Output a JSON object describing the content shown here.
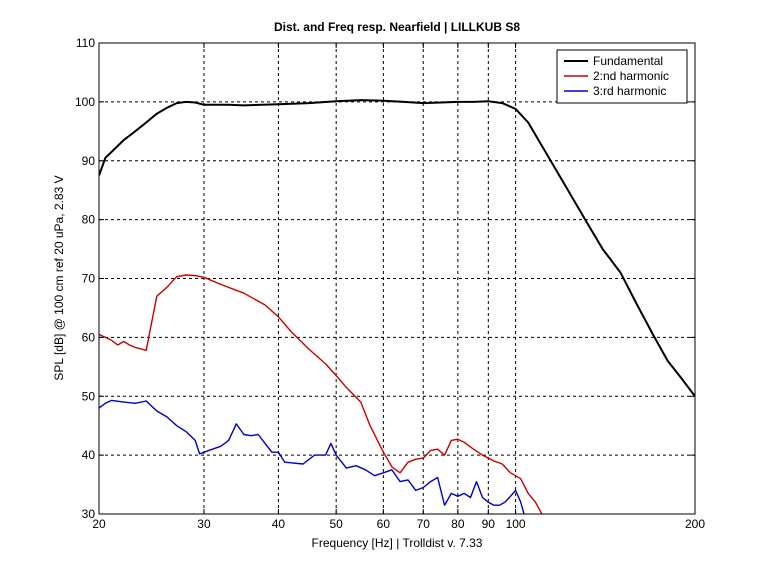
{
  "chart_data": {
    "type": "line",
    "title": "Dist. and Freq resp. Nearfield | LILLKUB S8",
    "xlabel": "Frequency [Hz] | Trolldist v. 7.33",
    "ylabel": "SPL [dB] @ 100 cm ref 20 uPa, 2.83 V",
    "xscale": "log",
    "xlim": [
      20,
      200
    ],
    "ylim": [
      30,
      110
    ],
    "xticks": [
      20,
      30,
      40,
      50,
      60,
      70,
      80,
      90,
      100,
      200
    ],
    "yticks": [
      30,
      40,
      50,
      60,
      70,
      80,
      90,
      100,
      110
    ],
    "grid": true,
    "legend_position": "top-right",
    "series": [
      {
        "name": "Fundamental",
        "color": "#000000",
        "points": [
          [
            20,
            87.5
          ],
          [
            20.5,
            90.5
          ],
          [
            21,
            91.5
          ],
          [
            22,
            93.5
          ],
          [
            23,
            95
          ],
          [
            24,
            96.5
          ],
          [
            25,
            98
          ],
          [
            26,
            99
          ],
          [
            27,
            99.8
          ],
          [
            28,
            100
          ],
          [
            29,
            99.9
          ],
          [
            30,
            99.5
          ],
          [
            33,
            99.5
          ],
          [
            35,
            99.4
          ],
          [
            40,
            99.6
          ],
          [
            45,
            99.8
          ],
          [
            50,
            100.1
          ],
          [
            55,
            100.3
          ],
          [
            60,
            100.2
          ],
          [
            65,
            100.0
          ],
          [
            70,
            99.8
          ],
          [
            75,
            99.9
          ],
          [
            80,
            100.0
          ],
          [
            85,
            100.0
          ],
          [
            90,
            100.1
          ],
          [
            95,
            99.8
          ],
          [
            100,
            98.8
          ],
          [
            105,
            96.5
          ],
          [
            110,
            93
          ],
          [
            120,
            86.5
          ],
          [
            130,
            80.5
          ],
          [
            140,
            75
          ],
          [
            150,
            71
          ],
          [
            160,
            65.5
          ],
          [
            170,
            60.5
          ],
          [
            180,
            56
          ],
          [
            190,
            53
          ],
          [
            200,
            50
          ]
        ]
      },
      {
        "name": "2:nd harmonic",
        "color": "#cc0000",
        "points": [
          [
            20,
            60.5
          ],
          [
            20.5,
            60
          ],
          [
            21,
            59.5
          ],
          [
            21.5,
            58.7
          ],
          [
            22,
            59.3
          ],
          [
            22.5,
            58.7
          ],
          [
            23,
            58.3
          ],
          [
            24,
            57.8
          ],
          [
            25,
            67
          ],
          [
            26,
            68.5
          ],
          [
            27,
            70.3
          ],
          [
            28,
            70.6
          ],
          [
            29,
            70.5
          ],
          [
            30,
            70.2
          ],
          [
            32,
            69
          ],
          [
            35,
            67.5
          ],
          [
            38,
            65.5
          ],
          [
            40,
            63.5
          ],
          [
            42,
            61
          ],
          [
            45,
            58
          ],
          [
            48,
            55.5
          ],
          [
            50,
            53.5
          ],
          [
            52,
            51.5
          ],
          [
            55,
            49
          ],
          [
            57,
            45
          ],
          [
            60,
            40.5
          ],
          [
            62,
            38
          ],
          [
            64,
            37
          ],
          [
            66,
            38.8
          ],
          [
            68,
            39.3
          ],
          [
            70,
            39.5
          ],
          [
            72,
            40.8
          ],
          [
            74,
            41
          ],
          [
            76,
            40
          ],
          [
            78,
            42.5
          ],
          [
            80,
            42.7
          ],
          [
            82,
            42.2
          ],
          [
            85,
            41
          ],
          [
            88,
            40
          ],
          [
            90,
            39.5
          ],
          [
            92,
            39
          ],
          [
            95,
            38.5
          ],
          [
            98,
            37
          ],
          [
            100,
            36.5
          ],
          [
            102,
            36
          ],
          [
            105,
            33.5
          ],
          [
            108,
            32
          ],
          [
            110,
            30.5
          ],
          [
            112,
            29
          ]
        ]
      },
      {
        "name": "3:rd harmonic",
        "color": "#0000cc",
        "points": [
          [
            20,
            48
          ],
          [
            20.5,
            48.8
          ],
          [
            21,
            49.3
          ],
          [
            22,
            49
          ],
          [
            23,
            48.8
          ],
          [
            24,
            49.2
          ],
          [
            25,
            47.5
          ],
          [
            26,
            46.5
          ],
          [
            27,
            45
          ],
          [
            28,
            44
          ],
          [
            29,
            42.5
          ],
          [
            29.5,
            40.2
          ],
          [
            30,
            40.5
          ],
          [
            31,
            41
          ],
          [
            32,
            41.5
          ],
          [
            33,
            42.5
          ],
          [
            34,
            45.3
          ],
          [
            35,
            43.5
          ],
          [
            36,
            43.3
          ],
          [
            37,
            43.5
          ],
          [
            38,
            42
          ],
          [
            39,
            40.5
          ],
          [
            40,
            40.5
          ],
          [
            41,
            38.8
          ],
          [
            42,
            38.7
          ],
          [
            44,
            38.5
          ],
          [
            46,
            40
          ],
          [
            48,
            40
          ],
          [
            49,
            42
          ],
          [
            50,
            40
          ],
          [
            52,
            37.8
          ],
          [
            54,
            38.2
          ],
          [
            56,
            37.5
          ],
          [
            58,
            36.5
          ],
          [
            60,
            37
          ],
          [
            62,
            37.5
          ],
          [
            64,
            35.5
          ],
          [
            66,
            35.8
          ],
          [
            68,
            34
          ],
          [
            70,
            34.5
          ],
          [
            72,
            35.5
          ],
          [
            74,
            36.2
          ],
          [
            76,
            31.5
          ],
          [
            78,
            33.5
          ],
          [
            80,
            33
          ],
          [
            82,
            33.5
          ],
          [
            84,
            32.8
          ],
          [
            86,
            35.5
          ],
          [
            88,
            32.8
          ],
          [
            90,
            32
          ],
          [
            92,
            31.5
          ],
          [
            94,
            31.5
          ],
          [
            96,
            32
          ],
          [
            98,
            33
          ],
          [
            100,
            34
          ],
          [
            102,
            32
          ],
          [
            104,
            29
          ]
        ]
      }
    ]
  }
}
